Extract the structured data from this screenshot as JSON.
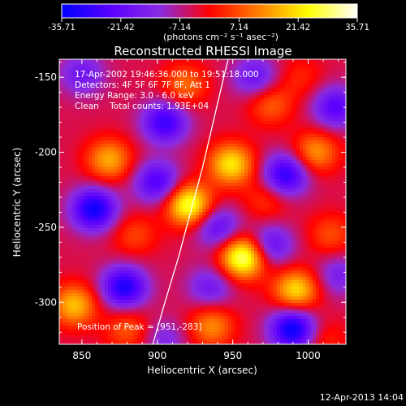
{
  "colorbar": {
    "ticks": [
      "-35.71",
      "-21.42",
      "-7.14",
      "7.14",
      "21.42",
      "35.71"
    ],
    "units": "(photons cm⁻² s⁻¹ asec⁻²)",
    "range": [
      -35.71,
      35.71
    ],
    "colormap": [
      "#0000ff",
      "#5a00ff",
      "#8a2be2",
      "#ff0000",
      "#ff7f00",
      "#ffff00",
      "#ffffff"
    ]
  },
  "plot": {
    "title": "Reconstructed RHESSI Image",
    "annotations": [
      "17-Apr-2002 19:46:36.000 to 19:51:18.000",
      "Detectors: 4F 5F 6F 7F 8F, Att 1",
      "Energy Range: 3.0 - 6.0 keV",
      "Clean    Total counts: 1.93E+04"
    ],
    "peak_label": "Position of Peak = [951,-283]",
    "footer_date": "12-Apr-2013 14:04"
  },
  "chart_data": {
    "type": "heatmap",
    "title": "Reconstructed RHESSI Image",
    "xlabel": "Heliocentric X (arcsec)",
    "ylabel": "Heliocentric Y (arcsec)",
    "xlim": [
      835,
      1025
    ],
    "ylim": [
      -328,
      -138
    ],
    "xticks": [
      "850",
      "900",
      "950",
      "1000"
    ],
    "yticks": [
      "-150",
      "-200",
      "-250",
      "-300"
    ],
    "xtick_values": [
      850,
      900,
      950,
      1000
    ],
    "ytick_values": [
      -150,
      -200,
      -250,
      -300
    ],
    "peak": [
      951,
      -283
    ],
    "limb_curve": [
      [
        897,
        -328
      ],
      [
        905,
        -300
      ],
      [
        914,
        -270
      ],
      [
        922,
        -240
      ],
      [
        930,
        -210
      ],
      [
        937,
        -180
      ],
      [
        944,
        -150
      ],
      [
        947,
        -138
      ]
    ],
    "sources": [
      {
        "x": 957,
        "y": -270,
        "v": 35.7
      },
      {
        "x": 921,
        "y": -235,
        "v": 32
      },
      {
        "x": 949,
        "y": -208,
        "v": 26
      },
      {
        "x": 992,
        "y": -292,
        "v": 25
      },
      {
        "x": 845,
        "y": -302,
        "v": 22
      },
      {
        "x": 868,
        "y": -205,
        "v": 20
      },
      {
        "x": 1005,
        "y": -200,
        "v": 18
      },
      {
        "x": 936,
        "y": -316,
        "v": 17
      },
      {
        "x": 918,
        "y": -155,
        "v": 14
      },
      {
        "x": 975,
        "y": -168,
        "v": 13
      },
      {
        "x": 880,
        "y": -318,
        "v": 12
      },
      {
        "x": 1015,
        "y": -255,
        "v": 11
      },
      {
        "x": 885,
        "y": -255,
        "v": 10
      },
      {
        "x": 972,
        "y": -232,
        "v": 9
      },
      {
        "x": 1010,
        "y": -325,
        "v": 8
      },
      {
        "x": 995,
        "y": -150,
        "v": 7
      },
      {
        "x": 858,
        "y": -238,
        "v": -30
      },
      {
        "x": 878,
        "y": -290,
        "v": -28
      },
      {
        "x": 990,
        "y": -318,
        "v": -32
      },
      {
        "x": 905,
        "y": -180,
        "v": -24
      },
      {
        "x": 985,
        "y": -215,
        "v": -26
      },
      {
        "x": 940,
        "y": -250,
        "v": -18
      },
      {
        "x": 900,
        "y": -220,
        "v": -22
      },
      {
        "x": 850,
        "y": -148,
        "v": -14
      },
      {
        "x": 1018,
        "y": -170,
        "v": -20
      },
      {
        "x": 965,
        "y": -150,
        "v": -16
      },
      {
        "x": 935,
        "y": -290,
        "v": -14
      },
      {
        "x": 975,
        "y": -262,
        "v": -18
      },
      {
        "x": 905,
        "y": -325,
        "v": -10
      },
      {
        "x": 1020,
        "y": -282,
        "v": -12
      }
    ]
  }
}
